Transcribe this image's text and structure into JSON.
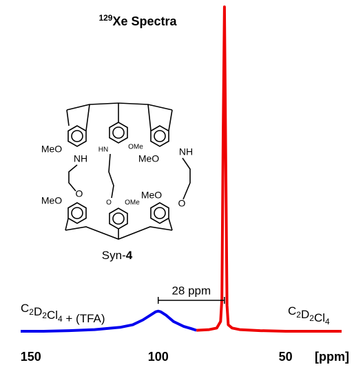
{
  "chart_data": {
    "type": "line",
    "title": "129Xe Spectra",
    "x_label": "[ppm]",
    "xlim": [
      154,
      28
    ],
    "xticks": [
      150,
      100,
      50
    ],
    "ylim": [
      0,
      100
    ],
    "annotation": "28 ppm",
    "series": [
      {
        "name": "C2D2Cl4 + (TFA)",
        "color": "#0000ee",
        "x": [
          154,
          145,
          135,
          125,
          115,
          110,
          106,
          103,
          101,
          100,
          99,
          97,
          94,
          90,
          87,
          85
        ],
        "values": [
          0,
          0,
          0.2,
          0.5,
          1.2,
          2,
          3.5,
          5,
          6,
          6.2,
          6,
          5,
          3,
          1.5,
          0.8,
          0.3
        ]
      },
      {
        "name": "C2D2Cl4",
        "color": "#ee0000",
        "x": [
          85,
          80,
          77,
          75.5,
          75,
          74.5,
          74,
          73.5,
          73,
          72.5,
          71,
          68,
          60,
          50,
          40,
          28
        ],
        "values": [
          0.3,
          0.5,
          1,
          3,
          10,
          60,
          100,
          55,
          8,
          2,
          1,
          0.5,
          0.2,
          0,
          0,
          0
        ]
      }
    ]
  },
  "structure": {
    "label": "Syn-4",
    "atoms": [
      "MeO",
      "NH",
      "HN",
      "OMe",
      "MeO",
      "NH",
      "MeO",
      "O",
      "O",
      "OMe",
      "MeO",
      "O"
    ]
  }
}
